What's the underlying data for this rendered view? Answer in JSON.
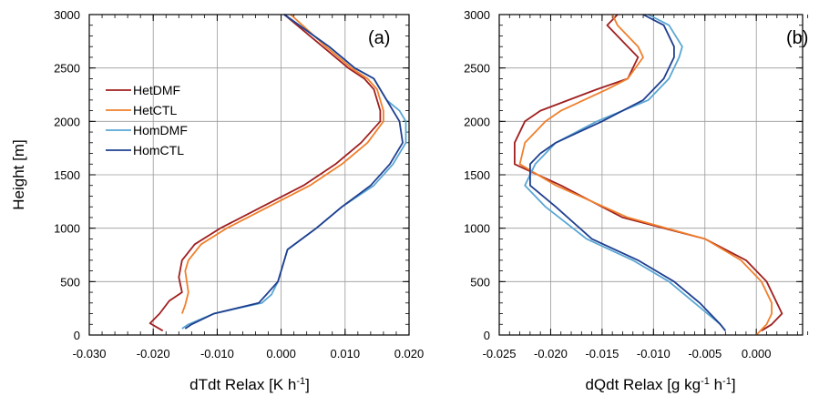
{
  "figure": {
    "ylabel": "Height [m]"
  },
  "legend": [
    {
      "name": "HetDMF",
      "color": "#a01f1f"
    },
    {
      "name": "HetCTL",
      "color": "#f0802c"
    },
    {
      "name": "HomDMF",
      "color": "#5aa6d4"
    },
    {
      "name": "HomCTL",
      "color": "#1f3f8f"
    }
  ],
  "chart_data": [
    {
      "type": "line",
      "panel_label": "(a)",
      "xlabel": "dTdt Relax [K h",
      "xlabel_sup": "-1",
      "xlabel_end": "]",
      "ylabel": "Height [m]",
      "xlim": [
        -0.03,
        0.02
      ],
      "ylim": [
        0,
        3000
      ],
      "xticks": [
        -0.03,
        -0.02,
        -0.01,
        0.0,
        0.01,
        0.02
      ],
      "xtick_labels": [
        "-0.030",
        "-0.020",
        "-0.010",
        "0.000",
        "0.010",
        "0.020"
      ],
      "yticks": [
        0,
        500,
        1000,
        1500,
        2000,
        2500,
        3000
      ],
      "ytick_labels": [
        "0",
        "500",
        "1000",
        "1500",
        "2000",
        "2500",
        "3000"
      ],
      "grid": true,
      "legend_position": "upper-left",
      "series": [
        {
          "name": "HetDMF",
          "color": "#a01f1f",
          "x": [
            -0.0185,
            -0.0205,
            -0.019,
            -0.0175,
            -0.0155,
            -0.016,
            -0.0155,
            -0.0135,
            -0.0095,
            -0.003,
            0.0035,
            0.0085,
            0.0125,
            0.0155,
            0.0155,
            0.0145,
            0.013,
            0.0105,
            0.0065,
            0.0005
          ],
          "y": [
            40,
            110,
            200,
            320,
            400,
            540,
            700,
            850,
            1000,
            1200,
            1400,
            1600,
            1800,
            2000,
            2100,
            2300,
            2400,
            2500,
            2700,
            3000
          ]
        },
        {
          "name": "HetCTL",
          "color": "#f0802c",
          "x": [
            -0.0155,
            -0.015,
            -0.0145,
            -0.0148,
            -0.015,
            -0.0145,
            -0.0125,
            -0.0085,
            -0.002,
            0.0045,
            0.0095,
            0.0135,
            0.016,
            0.016,
            0.015,
            0.0135,
            0.011,
            0.007,
            0.0015
          ],
          "y": [
            200,
            280,
            400,
            520,
            600,
            700,
            850,
            1000,
            1200,
            1400,
            1600,
            1800,
            2000,
            2100,
            2300,
            2400,
            2500,
            2700,
            3000
          ]
        },
        {
          "name": "HomDMF",
          "color": "#5aa6d4",
          "x": [
            -0.0155,
            -0.0145,
            -0.0105,
            -0.003,
            -0.0015,
            -0.0005,
            0.001,
            0.0055,
            0.0095,
            0.0145,
            0.0175,
            0.0195,
            0.0195,
            0.0185,
            0.0165,
            0.0145,
            0.0115,
            0.0075,
            0.0005
          ],
          "y": [
            60,
            100,
            200,
            300,
            380,
            500,
            800,
            1000,
            1200,
            1400,
            1600,
            1800,
            2000,
            2100,
            2200,
            2400,
            2500,
            2700,
            3000
          ]
        },
        {
          "name": "HomCTL",
          "color": "#1f3f8f",
          "x": [
            -0.015,
            -0.014,
            -0.0105,
            -0.0035,
            -0.002,
            -0.0005,
            0.001,
            0.0055,
            0.0095,
            0.014,
            0.017,
            0.019,
            0.0185,
            0.0165,
            0.0145,
            0.0115,
            0.0075,
            0.0005
          ],
          "y": [
            60,
            100,
            200,
            300,
            400,
            500,
            800,
            1000,
            1200,
            1400,
            1600,
            1800,
            2000,
            2200,
            2400,
            2500,
            2700,
            3000
          ]
        }
      ]
    },
    {
      "type": "line",
      "panel_label": "(b)",
      "xlabel": "dQdt Relax [g kg",
      "xlabel_sup1": "-1",
      "xlabel_mid": " h",
      "xlabel_sup2": "-1",
      "xlabel_end": "]",
      "xlim": [
        -0.025,
        0.0045
      ],
      "ylim": [
        0,
        3000
      ],
      "xticks": [
        -0.025,
        -0.02,
        -0.015,
        -0.01,
        -0.005,
        0.0
      ],
      "xtick_labels": [
        "-0.025",
        "-0.020",
        "-0.015",
        "-0.010",
        "-0.005",
        "0.000"
      ],
      "yticks": [
        0,
        500,
        1000,
        1500,
        2000,
        2500,
        3000
      ],
      "ytick_labels": [
        "0",
        "500",
        "1000",
        "1500",
        "2000",
        "2500",
        "3000"
      ],
      "grid": true,
      "series": [
        {
          "name": "HetDMF",
          "color": "#a01f1f",
          "x": [
            0.0005,
            0.0015,
            0.0025,
            0.002,
            0.001,
            -0.001,
            -0.005,
            -0.013,
            -0.019,
            -0.0235,
            -0.0235,
            -0.0225,
            -0.021,
            -0.0155,
            -0.0125,
            -0.0115,
            -0.0125,
            -0.0145,
            -0.0135
          ],
          "y": [
            40,
            100,
            200,
            300,
            500,
            700,
            900,
            1100,
            1400,
            1600,
            1800,
            2000,
            2100,
            2300,
            2400,
            2600,
            2700,
            2900,
            3000
          ]
        },
        {
          "name": "HetCTL",
          "color": "#f0802c",
          "x": [
            0.0,
            0.001,
            0.0015,
            0.0015,
            0.0005,
            -0.0015,
            -0.005,
            -0.0125,
            -0.0195,
            -0.023,
            -0.0225,
            -0.0215,
            -0.0205,
            -0.019,
            -0.0145,
            -0.0125,
            -0.011,
            -0.0115,
            -0.0135,
            -0.014
          ],
          "y": [
            0,
            100,
            200,
            300,
            500,
            700,
            900,
            1100,
            1400,
            1600,
            1800,
            1900,
            2000,
            2100,
            2300,
            2400,
            2600,
            2700,
            2900,
            3000
          ]
        },
        {
          "name": "HomDMF",
          "color": "#5aa6d4",
          "x": [
            -0.003,
            -0.0035,
            -0.006,
            -0.0085,
            -0.012,
            -0.0165,
            -0.0205,
            -0.0225,
            -0.0215,
            -0.0205,
            -0.0195,
            -0.0155,
            -0.0105,
            -0.0085,
            -0.0075,
            -0.0072,
            -0.0085,
            -0.0105
          ],
          "y": [
            40,
            100,
            300,
            500,
            700,
            900,
            1200,
            1400,
            1600,
            1700,
            1800,
            2000,
            2200,
            2400,
            2600,
            2700,
            2900,
            3000
          ]
        },
        {
          "name": "HomCTL",
          "color": "#1f3f8f",
          "x": [
            -0.003,
            -0.0035,
            -0.0055,
            -0.008,
            -0.0115,
            -0.016,
            -0.0195,
            -0.022,
            -0.022,
            -0.021,
            -0.0195,
            -0.015,
            -0.011,
            -0.009,
            -0.008,
            -0.008,
            -0.009,
            -0.011
          ],
          "y": [
            40,
            100,
            300,
            500,
            700,
            900,
            1200,
            1400,
            1600,
            1700,
            1800,
            2000,
            2200,
            2400,
            2600,
            2700,
            2900,
            3000
          ]
        }
      ]
    }
  ]
}
